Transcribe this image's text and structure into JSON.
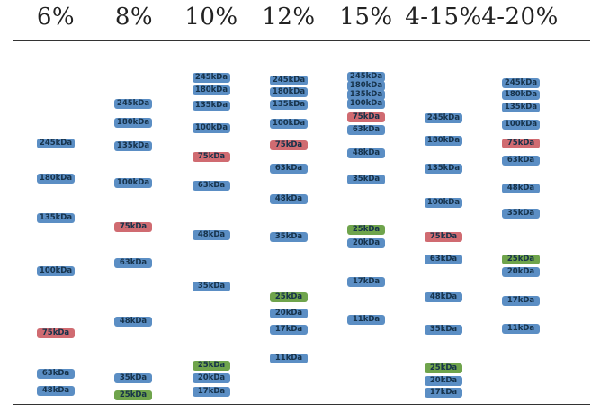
{
  "colors": {
    "standard": "#5b8ec4",
    "reference_red": "#d06b71",
    "reference_green": "#6fa44c"
  },
  "lanes": [
    {
      "header": "6%",
      "bands": [
        {
          "label": "245kDa",
          "kind": "standard"
        },
        {
          "label": "180kDa",
          "kind": "standard"
        },
        {
          "label": "135kDa",
          "kind": "standard"
        },
        {
          "label": "100kDa",
          "kind": "standard"
        },
        {
          "label": "75kDa",
          "kind": "reference_red"
        },
        {
          "label": "63kDa",
          "kind": "standard"
        },
        {
          "label": "48kDa",
          "kind": "standard"
        }
      ]
    },
    {
      "header": "8%",
      "bands": [
        {
          "label": "245kDa",
          "kind": "standard"
        },
        {
          "label": "180kDa",
          "kind": "standard"
        },
        {
          "label": "135kDa",
          "kind": "standard"
        },
        {
          "label": "100kDa",
          "kind": "standard"
        },
        {
          "label": "75kDa",
          "kind": "reference_red"
        },
        {
          "label": "63kDa",
          "kind": "standard"
        },
        {
          "label": "48kDa",
          "kind": "standard"
        },
        {
          "label": "35kDa",
          "kind": "standard"
        },
        {
          "label": "25kDa",
          "kind": "reference_green"
        }
      ]
    },
    {
      "header": "10%",
      "bands": [
        {
          "label": "245kDa",
          "kind": "standard"
        },
        {
          "label": "180kDa",
          "kind": "standard"
        },
        {
          "label": "135kDa",
          "kind": "standard"
        },
        {
          "label": "100kDa",
          "kind": "standard"
        },
        {
          "label": "75kDa",
          "kind": "reference_red"
        },
        {
          "label": "63kDa",
          "kind": "standard"
        },
        {
          "label": "48kDa",
          "kind": "standard"
        },
        {
          "label": "35kDa",
          "kind": "standard"
        },
        {
          "label": "25kDa",
          "kind": "reference_green"
        },
        {
          "label": "20kDa",
          "kind": "standard"
        },
        {
          "label": "17kDa",
          "kind": "standard"
        }
      ]
    },
    {
      "header": "12%",
      "bands": [
        {
          "label": "245kDa",
          "kind": "standard"
        },
        {
          "label": "180kDa",
          "kind": "standard"
        },
        {
          "label": "135kDa",
          "kind": "standard"
        },
        {
          "label": "100kDa",
          "kind": "standard"
        },
        {
          "label": "75kDa",
          "kind": "reference_red"
        },
        {
          "label": "63kDa",
          "kind": "standard"
        },
        {
          "label": "48kDa",
          "kind": "standard"
        },
        {
          "label": "35kDa",
          "kind": "standard"
        },
        {
          "label": "25kDa",
          "kind": "reference_green"
        },
        {
          "label": "20kDa",
          "kind": "standard"
        },
        {
          "label": "17kDa",
          "kind": "standard"
        },
        {
          "label": "11kDa",
          "kind": "standard"
        }
      ]
    },
    {
      "header": "15%",
      "bands": [
        {
          "label": "245kDa",
          "kind": "standard"
        },
        {
          "label": "180kDa",
          "kind": "standard"
        },
        {
          "label": "135kDa",
          "kind": "standard"
        },
        {
          "label": "100kDa",
          "kind": "standard"
        },
        {
          "label": "75kDa",
          "kind": "reference_red"
        },
        {
          "label": "63kDa",
          "kind": "standard"
        },
        {
          "label": "48kDa",
          "kind": "standard"
        },
        {
          "label": "35kDa",
          "kind": "standard"
        },
        {
          "label": "25kDa",
          "kind": "reference_green"
        },
        {
          "label": "20kDa",
          "kind": "standard"
        },
        {
          "label": "17kDa",
          "kind": "standard"
        },
        {
          "label": "11kDa",
          "kind": "standard"
        }
      ]
    },
    {
      "header": "4-15%",
      "bands": [
        {
          "label": "245kDa",
          "kind": "standard"
        },
        {
          "label": "180kDa",
          "kind": "standard"
        },
        {
          "label": "135kDa",
          "kind": "standard"
        },
        {
          "label": "100kDa",
          "kind": "standard"
        },
        {
          "label": "75kDa",
          "kind": "reference_red"
        },
        {
          "label": "63kDa",
          "kind": "standard"
        },
        {
          "label": "48kDa",
          "kind": "standard"
        },
        {
          "label": "35kDa",
          "kind": "standard"
        },
        {
          "label": "25kDa",
          "kind": "reference_green"
        },
        {
          "label": "20kDa",
          "kind": "standard"
        },
        {
          "label": "17kDa",
          "kind": "standard"
        }
      ]
    },
    {
      "header": "4-20%",
      "bands": [
        {
          "label": "245kDa",
          "kind": "standard"
        },
        {
          "label": "180kDa",
          "kind": "standard"
        },
        {
          "label": "135kDa",
          "kind": "standard"
        },
        {
          "label": "100kDa",
          "kind": "standard"
        },
        {
          "label": "75kDa",
          "kind": "reference_red"
        },
        {
          "label": "63kDa",
          "kind": "standard"
        },
        {
          "label": "48kDa",
          "kind": "standard"
        },
        {
          "label": "35kDa",
          "kind": "standard"
        },
        {
          "label": "25kDa",
          "kind": "reference_green"
        },
        {
          "label": "20kDa",
          "kind": "standard"
        },
        {
          "label": "17kDa",
          "kind": "standard"
        },
        {
          "label": "11kDa",
          "kind": "standard"
        }
      ]
    }
  ]
}
